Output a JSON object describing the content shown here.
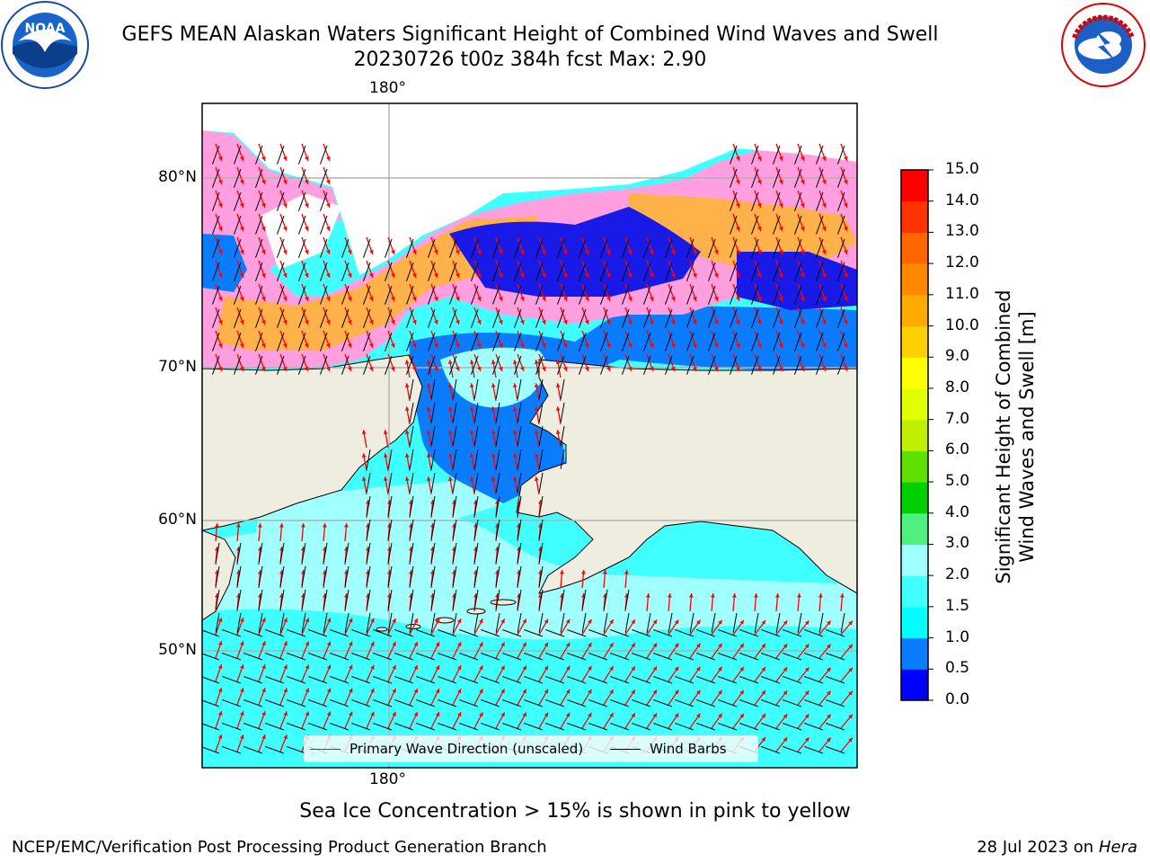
{
  "header": {
    "title_line1": "GEFS MEAN Alaskan Waters Significant Height of Combined Wind Waves and Swell",
    "title_line2": "20230726 t00z 384h fcst   Max: 2.90"
  },
  "logos": {
    "left": {
      "name": "NOAA",
      "ring_text": "NATIONAL OCEANIC AND ATMOSPHERIC ADMINISTRATION · U.S. DEPARTMENT OF COMMERCE"
    },
    "right": {
      "name": "NATIONAL WEATHER SERVICE"
    }
  },
  "map": {
    "lon_top": "180°",
    "lon_bottom": "180°",
    "lat_labels": [
      "80°N",
      "70°N",
      "60°N",
      "50°N"
    ],
    "colors": {
      "land": "#efeddf",
      "coast": "#000000",
      "gridline": "#b0b0b0",
      "wave_arrow": "#ff0000",
      "wind_barb": "#000000"
    }
  },
  "colorbar": {
    "label_line1": "Significant Height of Combined",
    "label_line2": "Wind Waves and Swell [m]",
    "ticks": [
      "0.0",
      "0.5",
      "1.0",
      "1.5",
      "2.0",
      "3.0",
      "4.0",
      "5.0",
      "6.0",
      "7.0",
      "8.0",
      "9.0",
      "10.0",
      "11.0",
      "12.0",
      "13.0",
      "14.0",
      "15.0"
    ],
    "colors": [
      "#0000ff",
      "#0a7cff",
      "#00ffff",
      "#40ffff",
      "#a0ffff",
      "#50f080",
      "#00d000",
      "#60e000",
      "#c0f000",
      "#e0ff00",
      "#ffff00",
      "#ffd000",
      "#ffaa00",
      "#ff8800",
      "#ff6600",
      "#ff3300",
      "#ff0000"
    ]
  },
  "legend": {
    "wave": "Primary Wave Direction (unscaled)",
    "wind": "Wind Barbs"
  },
  "footer": {
    "ice_note": "Sea Ice Concentration > 15% is shown in pink to yellow",
    "left": "NCEP/EMC/Verification Post Processing Product Generation Branch",
    "date": "28 Jul 2023 on ",
    "machine": "Hera"
  }
}
